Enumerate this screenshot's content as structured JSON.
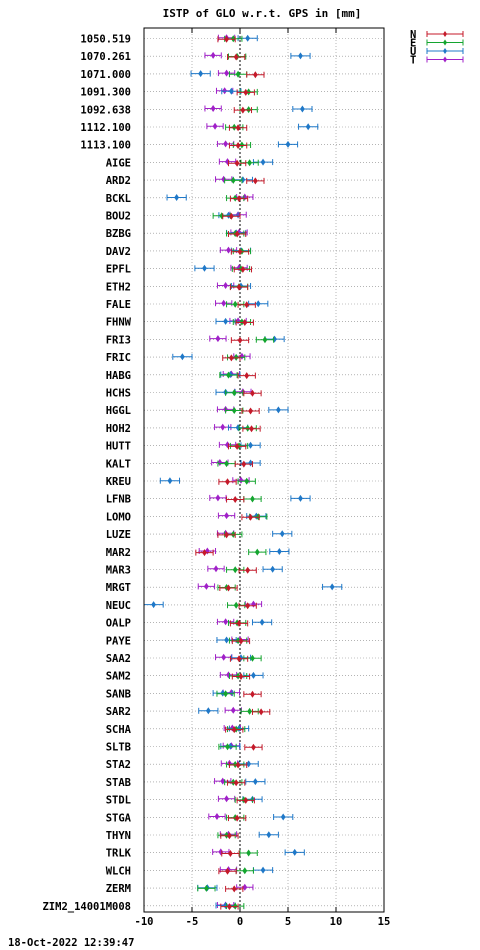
{
  "chart_data": {
    "type": "scatter",
    "title": "ISTP of GLO w.r.t. GPS in [mm]",
    "footer": "18-Oct-2022 12:39:47",
    "xlim": [
      -10,
      15
    ],
    "xticks": [
      "-10",
      "-5",
      "0",
      "5",
      "10",
      "15"
    ],
    "legend": [
      {
        "name": "N",
        "color": "#c41a2a"
      },
      {
        "name": "E",
        "color": "#14a52f"
      },
      {
        "name": "U",
        "color": "#1f78c8"
      },
      {
        "name": "T",
        "color": "#a020c8"
      }
    ],
    "grid": true,
    "zero_line": true,
    "stations": [
      {
        "name": "1050.519",
        "N": -1.4,
        "E": -0.7,
        "U": 0.8,
        "T": -1.4
      },
      {
        "name": "1070.261",
        "N": -0.4,
        "E": -0.3,
        "U": 6.3,
        "T": -2.8
      },
      {
        "name": "1071.000",
        "N": 1.6,
        "E": -0.2,
        "U": -4.1,
        "T": -1.4
      },
      {
        "name": "1091.300",
        "N": 0.6,
        "E": 0.9,
        "U": -0.9,
        "T": -1.6
      },
      {
        "name": "1092.638",
        "N": 0.3,
        "E": 0.9,
        "U": 6.5,
        "T": -2.8
      },
      {
        "name": "1112.100",
        "N": -0.2,
        "E": -0.6,
        "U": 7.1,
        "T": -2.6
      },
      {
        "name": "1113.100",
        "N": -0.2,
        "E": 0.2,
        "U": 5.0,
        "T": -1.5
      },
      {
        "name": "AIGE",
        "N": -0.3,
        "E": 1.0,
        "U": 2.4,
        "T": -1.3
      },
      {
        "name": "ARD2",
        "N": 1.6,
        "E": -0.7,
        "U": 0.3,
        "T": -1.7
      },
      {
        "name": "BCKL",
        "N": -0.1,
        "E": -0.5,
        "U": -6.6,
        "T": 0.5
      },
      {
        "name": "BOU2",
        "N": -0.9,
        "E": -1.9,
        "U": -1.2,
        "T": -0.2
      },
      {
        "name": "BZBG",
        "N": -0.3,
        "E": -0.5,
        "U": -0.4,
        "T": -0.1
      },
      {
        "name": "DAV2",
        "N": 0.0,
        "E": 0.2,
        "U": 0.1,
        "T": -1.2
      },
      {
        "name": "EPFL",
        "N": 0.3,
        "E": 0.1,
        "U": -3.7,
        "T": -0.1
      },
      {
        "name": "ETH2",
        "N": -0.1,
        "E": -0.1,
        "U": 0.1,
        "T": -1.5
      },
      {
        "name": "FALE",
        "N": 0.7,
        "E": -0.5,
        "U": 1.9,
        "T": -1.7
      },
      {
        "name": "FHNW",
        "N": 0.5,
        "E": 0.2,
        "U": -1.5,
        "T": -0.2
      },
      {
        "name": "FRI3",
        "N": 0.0,
        "E": 2.6,
        "U": 3.6,
        "T": -2.3
      },
      {
        "name": "FRIC",
        "N": -0.9,
        "E": -0.4,
        "U": -6.0,
        "T": 0.2
      },
      {
        "name": "HABG",
        "N": 0.7,
        "E": -1.2,
        "U": -1.0,
        "T": -0.9
      },
      {
        "name": "HCHS",
        "N": 1.3,
        "E": -0.6,
        "U": -1.5,
        "T": 0.3
      },
      {
        "name": "HGGL",
        "N": 1.1,
        "E": -0.6,
        "U": 4.0,
        "T": -1.5
      },
      {
        "name": "HOH2",
        "N": 1.2,
        "E": 0.8,
        "U": -0.2,
        "T": -1.8
      },
      {
        "name": "HUTT",
        "N": -0.3,
        "E": -0.1,
        "U": 1.1,
        "T": -1.3
      },
      {
        "name": "KALT",
        "N": 0.4,
        "E": -1.4,
        "U": 1.1,
        "T": -2.1
      },
      {
        "name": "KREU",
        "N": -1.3,
        "E": 0.7,
        "U": -7.3,
        "T": 0.1
      },
      {
        "name": "LFNB",
        "N": -0.5,
        "E": 1.3,
        "U": 6.3,
        "T": -2.3
      },
      {
        "name": "LOMO",
        "N": 1.1,
        "E": 1.9,
        "U": 1.7,
        "T": -1.4
      },
      {
        "name": "LUZE",
        "N": -1.4,
        "E": -0.7,
        "U": 4.4,
        "T": -1.5
      },
      {
        "name": "MAR2",
        "N": -3.7,
        "E": 1.8,
        "U": 4.1,
        "T": -3.4
      },
      {
        "name": "MAR3",
        "N": 0.8,
        "E": -0.5,
        "U": 3.4,
        "T": -2.5
      },
      {
        "name": "MRGT",
        "N": -1.2,
        "E": -1.4,
        "U": 9.6,
        "T": -3.5
      },
      {
        "name": "NEUC",
        "N": 0.8,
        "E": -0.4,
        "U": -9.0,
        "T": 1.4
      },
      {
        "name": "OALP",
        "N": -0.1,
        "E": -0.3,
        "U": 2.3,
        "T": -1.5
      },
      {
        "name": "PAYE",
        "N": 0.1,
        "E": -0.2,
        "U": -1.4,
        "T": 0.0
      },
      {
        "name": "SAA2",
        "N": -0.1,
        "E": 1.3,
        "U": 0.1,
        "T": -1.7
      },
      {
        "name": "SAM2",
        "N": 0.1,
        "E": -0.2,
        "U": 1.4,
        "T": -1.2
      },
      {
        "name": "SANB",
        "N": 1.3,
        "E": -1.5,
        "U": -1.8,
        "T": -0.9
      },
      {
        "name": "SAR2",
        "N": 2.2,
        "E": 1.0,
        "U": -3.3,
        "T": -0.7
      },
      {
        "name": "SCHA",
        "N": -0.6,
        "E": -0.4,
        "U": -0.1,
        "T": -0.8
      },
      {
        "name": "SLTB",
        "N": 1.4,
        "E": -1.3,
        "U": -1.0,
        "T": -0.9
      },
      {
        "name": "STA2",
        "N": -0.2,
        "E": -0.5,
        "U": 0.9,
        "T": -1.1
      },
      {
        "name": "STAB",
        "N": -0.4,
        "E": -0.7,
        "U": 1.6,
        "T": -1.8
      },
      {
        "name": "STDL",
        "N": 0.6,
        "E": 0.4,
        "U": 1.3,
        "T": -1.4
      },
      {
        "name": "STGA",
        "N": -0.3,
        "E": -0.5,
        "U": 4.5,
        "T": -2.4
      },
      {
        "name": "THYN",
        "N": -1.1,
        "E": -1.4,
        "U": 3.0,
        "T": -1.2
      },
      {
        "name": "TRLK",
        "N": -1.0,
        "E": 0.9,
        "U": 5.7,
        "T": -2.0
      },
      {
        "name": "WLCH",
        "N": -1.3,
        "E": 0.5,
        "U": 2.4,
        "T": -1.2
      },
      {
        "name": "ZERM",
        "N": -0.6,
        "E": -3.5,
        "U": -3.4,
        "T": 0.5
      },
      {
        "name": "ZIM2_14001M008",
        "N": -1.1,
        "E": -0.5,
        "U": -1.5,
        "T": -1.5
      }
    ]
  }
}
